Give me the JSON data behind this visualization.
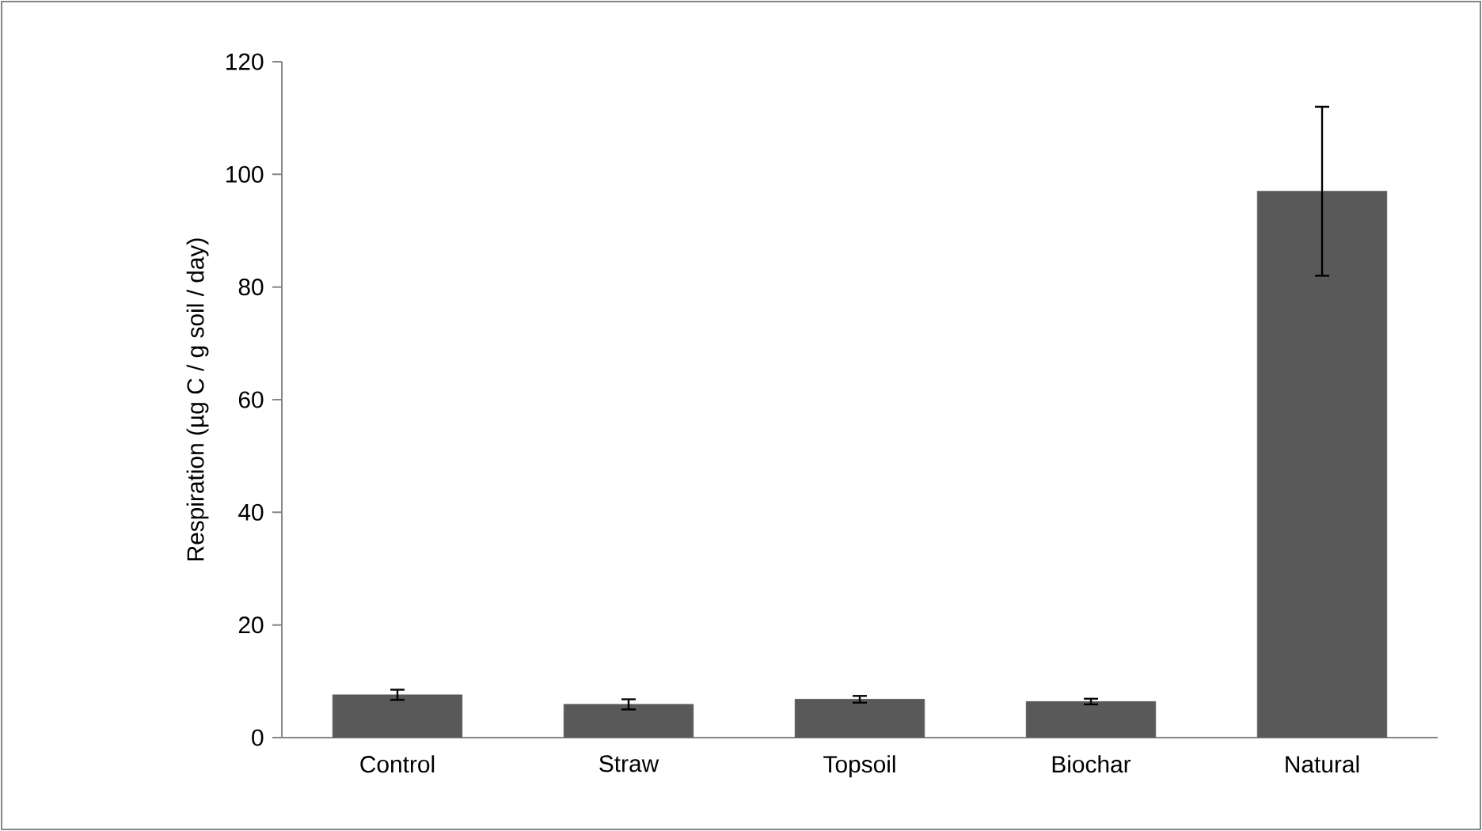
{
  "chart_data": {
    "type": "bar",
    "ylabel": "Respiration (µg C / g soil / day)",
    "categories": [
      "Control",
      "Straw",
      "Topsoil",
      "Biochar",
      "Natural"
    ],
    "values": [
      7.6,
      5.9,
      6.8,
      6.4,
      97
    ],
    "errors": [
      0.9,
      0.9,
      0.6,
      0.5,
      15
    ],
    "color": "#595959",
    "ylim": [
      0,
      120
    ],
    "yticks": [
      0,
      20,
      40,
      60,
      80,
      100,
      120
    ],
    "grid": false
  }
}
